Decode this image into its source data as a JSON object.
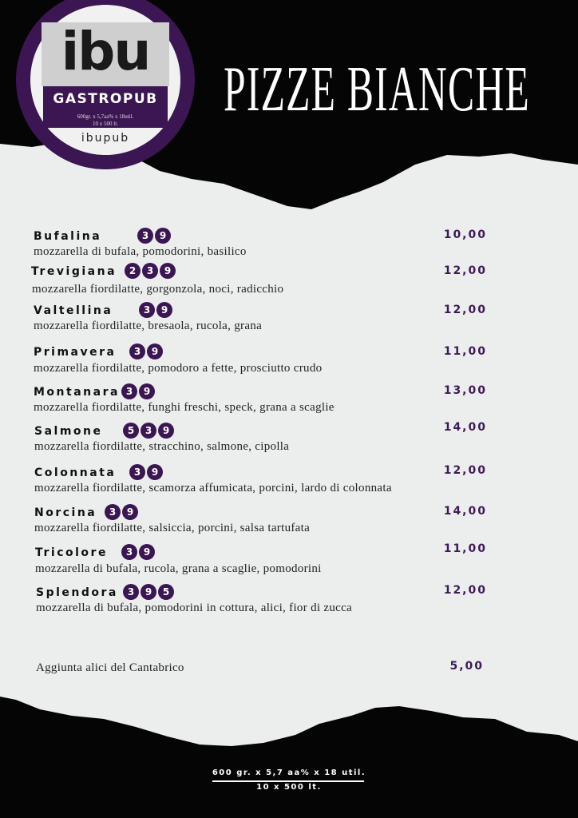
{
  "logo": {
    "mark": "ibu",
    "brand": "GASTROPUB",
    "line1": "600gr. x 5,7aa% x 18util.",
    "line2": "10 x 500 lt.",
    "handle": "ibupub"
  },
  "title": "PIZZE BIANCHE",
  "items": [
    {
      "name": "Bufalina",
      "allergens": [
        3,
        9
      ],
      "description": "mozzarella di bufala, pomodorini, basilico",
      "price": "10,00"
    },
    {
      "name": "Trevigiana",
      "allergens": [
        2,
        3,
        9
      ],
      "description": "mozzarella fiordilatte, gorgonzola, noci, radicchio",
      "price": "12,00"
    },
    {
      "name": "Valtellina",
      "allergens": [
        3,
        9
      ],
      "description": "mozzarella fiordilatte, bresaola, rucola, grana",
      "price": "12,00"
    },
    {
      "name": "Primavera",
      "allergens": [
        3,
        9
      ],
      "description": "mozzarella fiordilatte, pomodoro a fette, prosciutto crudo",
      "price": "11,00"
    },
    {
      "name": "Montanara",
      "allergens": [
        3,
        9
      ],
      "description": "mozzarella fiordilatte, funghi freschi, speck, grana a scaglie",
      "price": "13,00"
    },
    {
      "name": "Salmone",
      "allergens": [
        5,
        3,
        9
      ],
      "description": "mozzarella fiordilatte, stracchino, salmone, cipolla",
      "price": "14,00"
    },
    {
      "name": "Colonnata",
      "allergens": [
        3,
        9
      ],
      "description": "mozzarella fiordilatte, scamorza affumicata, porcini, lardo di colonnata",
      "price": "12,00"
    },
    {
      "name": "Norcina",
      "allergens": [
        3,
        9
      ],
      "description": "mozzarella fiordilatte, salsiccia, porcini, salsa tartufata",
      "price": "14,00"
    },
    {
      "name": "Tricolore",
      "allergens": [
        3,
        9
      ],
      "description": "mozzarella di bufala, rucola, grana a scaglie, pomodorini",
      "price": "11,00"
    },
    {
      "name": "Splendora",
      "allergens": [
        3,
        9,
        5
      ],
      "description": "mozzarella di bufala, pomodorini in cottura, alici, fior di zucca",
      "price": "12,00"
    }
  ],
  "extra": {
    "label": "Aggiunta alici del Cantabrico",
    "price": "5,00"
  },
  "footer": {
    "line1": "600 gr. x 5,7 aa% x 18 util.",
    "line2": "10 x 500 lt."
  }
}
